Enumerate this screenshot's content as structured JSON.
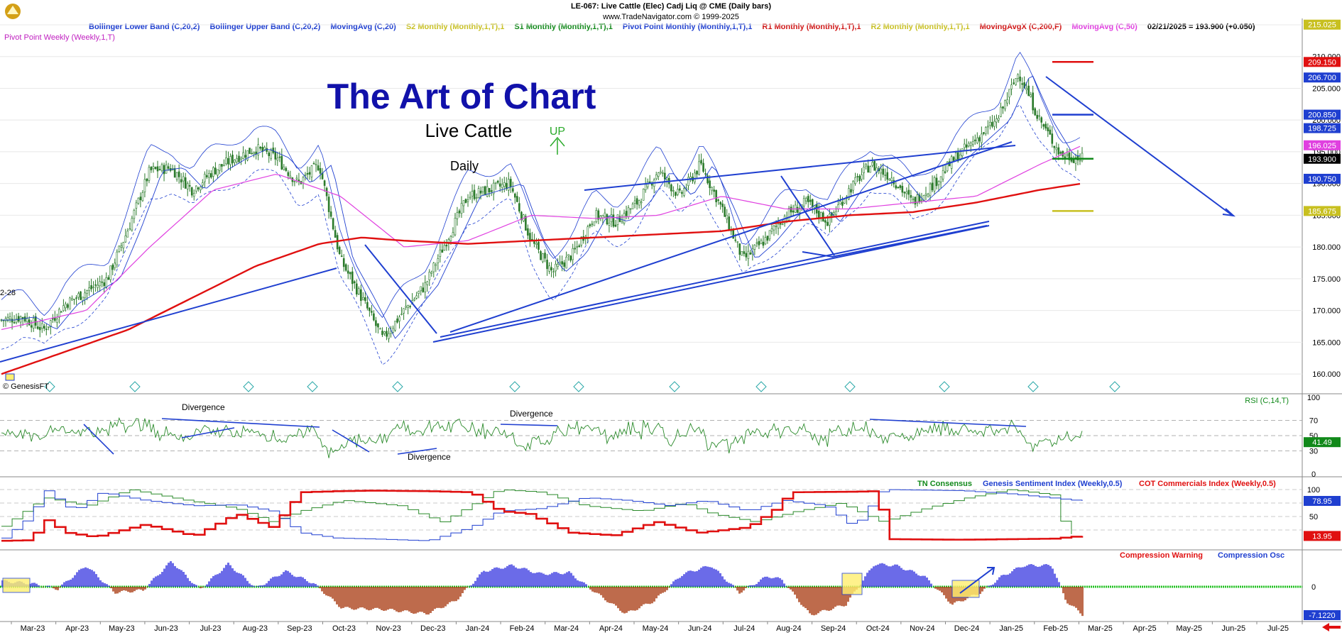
{
  "header": {
    "line1": "LE-067:  Live Cattle (Elec) Cadj Liq @ CME  (Daily bars)",
    "line2": "www.TradeNavigator.com © 1999-2025"
  },
  "legend": [
    {
      "text": "Bollinger Lower Band (C,20,2)",
      "color": "#1f3fd0"
    },
    {
      "text": "Bollinger Upper Band (C,20,2)",
      "color": "#1f3fd0"
    },
    {
      "text": "MovingAvg (C,20)",
      "color": "#1f3fd0"
    },
    {
      "text": "S2 Monthly (Monthly,1,T),1",
      "color": "#c8c020"
    },
    {
      "text": "S1 Monthly (Monthly,1,T),1",
      "color": "#11891a"
    },
    {
      "text": "Pivot Point Monthly (Monthly,1,T),1",
      "color": "#1f3fd0"
    },
    {
      "text": "R1 Monthly (Monthly,1,T),1",
      "color": "#d01515"
    },
    {
      "text": "R2 Monthly (Monthly,1,T),1",
      "color": "#c8c020"
    },
    {
      "text": "MovingAvgX (C,200,F)",
      "color": "#d01515"
    },
    {
      "text": "MovingAvg (C,50)",
      "color": "#e040e0"
    },
    {
      "text": "02/21/2025 = 193.900 (+0.050)",
      "color": "#000000"
    }
  ],
  "legend2": {
    "text": "Pivot Point Weekly (Weekly,1,T)",
    "color": "#c020c0"
  },
  "annotations": {
    "title": "The Art of Chart",
    "subtitle": "Live Cattle",
    "timeframe": "Daily",
    "up_label": "UP",
    "copyright": "© GenesisFT",
    "left_label": "2-28",
    "divergence_labels": [
      "Divergence",
      "Divergence",
      "Divergence"
    ]
  },
  "colors": {
    "candle": "#2a7a2a",
    "trendline": "#1f3fd0",
    "ma200": "#e01010",
    "ma50": "#e040e0",
    "rsi": "#2a8a2a",
    "consensus_green": "#2a8a2a",
    "sentiment_blue": "#1f3fd0",
    "cot_red": "#e01010",
    "osc_blue": "#3a3ae0",
    "osc_brown": "#a83a10",
    "osc_zero": "#22c022"
  },
  "chart_data": [
    {
      "type": "candlestick",
      "title": "Live Cattle (Elec) Cadj Liq @ CME (Daily bars)",
      "ylim": [
        157,
        216
      ],
      "y_ticks": [
        "160.000",
        "165.000",
        "170.000",
        "175.000",
        "180.000",
        "185.000",
        "190.000",
        "195.000",
        "200.000",
        "205.000",
        "210.000",
        "215.000"
      ],
      "x_labels": [
        "Mar-23",
        "Apr-23",
        "May-23",
        "Jun-23",
        "Jul-23",
        "Aug-23",
        "Sep-23",
        "Oct-23",
        "Nov-23",
        "Dec-23",
        "Jan-24",
        "Feb-24",
        "Mar-24",
        "Apr-24",
        "May-24",
        "Jun-24",
        "Jul-24",
        "Aug-24",
        "Sep-24",
        "Oct-24",
        "Nov-24",
        "Dec-24",
        "Jan-25",
        "Feb-25",
        "Mar-25",
        "Apr-25",
        "May-25",
        "Jun-25",
        "Jul-25"
      ],
      "price_path": [
        [
          0,
          168.5
        ],
        [
          1,
          169
        ],
        [
          2,
          167
        ],
        [
          3,
          171
        ],
        [
          4,
          173
        ],
        [
          5,
          175
        ],
        [
          6,
          183
        ],
        [
          7,
          192
        ],
        [
          8,
          192.5
        ],
        [
          9,
          189
        ],
        [
          10,
          192
        ],
        [
          11,
          194
        ],
        [
          12,
          195.5
        ],
        [
          13,
          194
        ],
        [
          14,
          190
        ],
        [
          15,
          193
        ],
        [
          16,
          178
        ],
        [
          17,
          172
        ],
        [
          18,
          165.5
        ],
        [
          19,
          170
        ],
        [
          20,
          174
        ],
        [
          21,
          181
        ],
        [
          22,
          188
        ],
        [
          23,
          189
        ],
        [
          24,
          190
        ],
        [
          25,
          181
        ],
        [
          26,
          176
        ],
        [
          27,
          179
        ],
        [
          28,
          185
        ],
        [
          29,
          184
        ],
        [
          30,
          187
        ],
        [
          31,
          192
        ],
        [
          32,
          188
        ],
        [
          33,
          193
        ],
        [
          34,
          186
        ],
        [
          35,
          178
        ],
        [
          36,
          181
        ],
        [
          37,
          185
        ],
        [
          38,
          187
        ],
        [
          39,
          184
        ],
        [
          40,
          189
        ],
        [
          41,
          193
        ],
        [
          42,
          191
        ],
        [
          43,
          187
        ],
        [
          44,
          190
        ],
        [
          45,
          194
        ],
        [
          46,
          197
        ],
        [
          47,
          200
        ],
        [
          48,
          207.5
        ],
        [
          49,
          200
        ],
        [
          50,
          194.5
        ],
        [
          51,
          193.9
        ]
      ],
      "ma200_path": [
        [
          0,
          160
        ],
        [
          3,
          163.5
        ],
        [
          6,
          167
        ],
        [
          9,
          172
        ],
        [
          12,
          177
        ],
        [
          15,
          180.5
        ],
        [
          17,
          181.5
        ],
        [
          19,
          181
        ],
        [
          22,
          180.5
        ],
        [
          25,
          181
        ],
        [
          28,
          181.5
        ],
        [
          31,
          182
        ],
        [
          34,
          182.5
        ],
        [
          37,
          184
        ],
        [
          40,
          185
        ],
        [
          43,
          185.5
        ],
        [
          46,
          187
        ],
        [
          49,
          189
        ],
        [
          51,
          190
        ]
      ],
      "ma50_path": [
        [
          0,
          167
        ],
        [
          4,
          170
        ],
        [
          7,
          180
        ],
        [
          10,
          189
        ],
        [
          13,
          191.5
        ],
        [
          16,
          188
        ],
        [
          19,
          180
        ],
        [
          22,
          181
        ],
        [
          25,
          185
        ],
        [
          28,
          184.5
        ],
        [
          31,
          185
        ],
        [
          34,
          188
        ],
        [
          37,
          186
        ],
        [
          40,
          186
        ],
        [
          43,
          187
        ],
        [
          46,
          188
        ],
        [
          49,
          193
        ],
        [
          51,
          196
        ]
      ],
      "readouts": [
        {
          "label": "215.025",
          "value": 215.025,
          "bg": "#c8c020",
          "fg": "#ffffff"
        },
        {
          "label": "209.150",
          "value": 209.15,
          "bg": "#e01010",
          "fg": "#ffffff"
        },
        {
          "label": "206.700",
          "value": 206.7,
          "bg": "#1f3fd0",
          "fg": "#ffffff"
        },
        {
          "label": "200.850",
          "value": 200.85,
          "bg": "#1f3fd0",
          "fg": "#ffffff"
        },
        {
          "label": "198.725",
          "value": 198.725,
          "bg": "#1f3fd0",
          "fg": "#ffffff"
        },
        {
          "label": "196.025",
          "value": 196.025,
          "bg": "#e040e0",
          "fg": "#ffffff"
        },
        {
          "label": "193.900",
          "value": 193.9,
          "bg": "#000000",
          "fg": "#ffffff"
        },
        {
          "label": "190.750",
          "value": 190.75,
          "bg": "#1f3fd0",
          "fg": "#ffffff"
        },
        {
          "label": "185.675",
          "value": 185.675,
          "bg": "#c8c020",
          "fg": "#ffffff"
        }
      ]
    },
    {
      "type": "line",
      "title": "RSI (C,14,T)",
      "ylim": [
        0,
        100
      ],
      "y_ticks": [
        "0",
        "30",
        "50",
        "70",
        "100"
      ],
      "last_value": "41.49"
    },
    {
      "type": "line",
      "title": "TN Consensus / Genesis Sentiment Index / COT Commercials Index",
      "series": [
        {
          "name": "TN Consensus",
          "color": "#2a8a2a"
        },
        {
          "name": "Genesis Sentiment Index (Weekly,0.5)",
          "color": "#1f3fd0"
        },
        {
          "name": "COT Commercials Index (Weekly,0.5)",
          "color": "#e01010"
        }
      ],
      "y_ticks": [
        "50",
        "100"
      ],
      "last_values": [
        "78.95",
        "13.95"
      ]
    },
    {
      "type": "area",
      "title": "Compression Warning / Compression Osc",
      "series": [
        {
          "name": "Compression Warning",
          "color": "#e01010"
        },
        {
          "name": "Compression Osc",
          "color": "#1f3fd0"
        }
      ],
      "y_ticks": [
        "0"
      ],
      "last_value": "-7.1220"
    }
  ]
}
